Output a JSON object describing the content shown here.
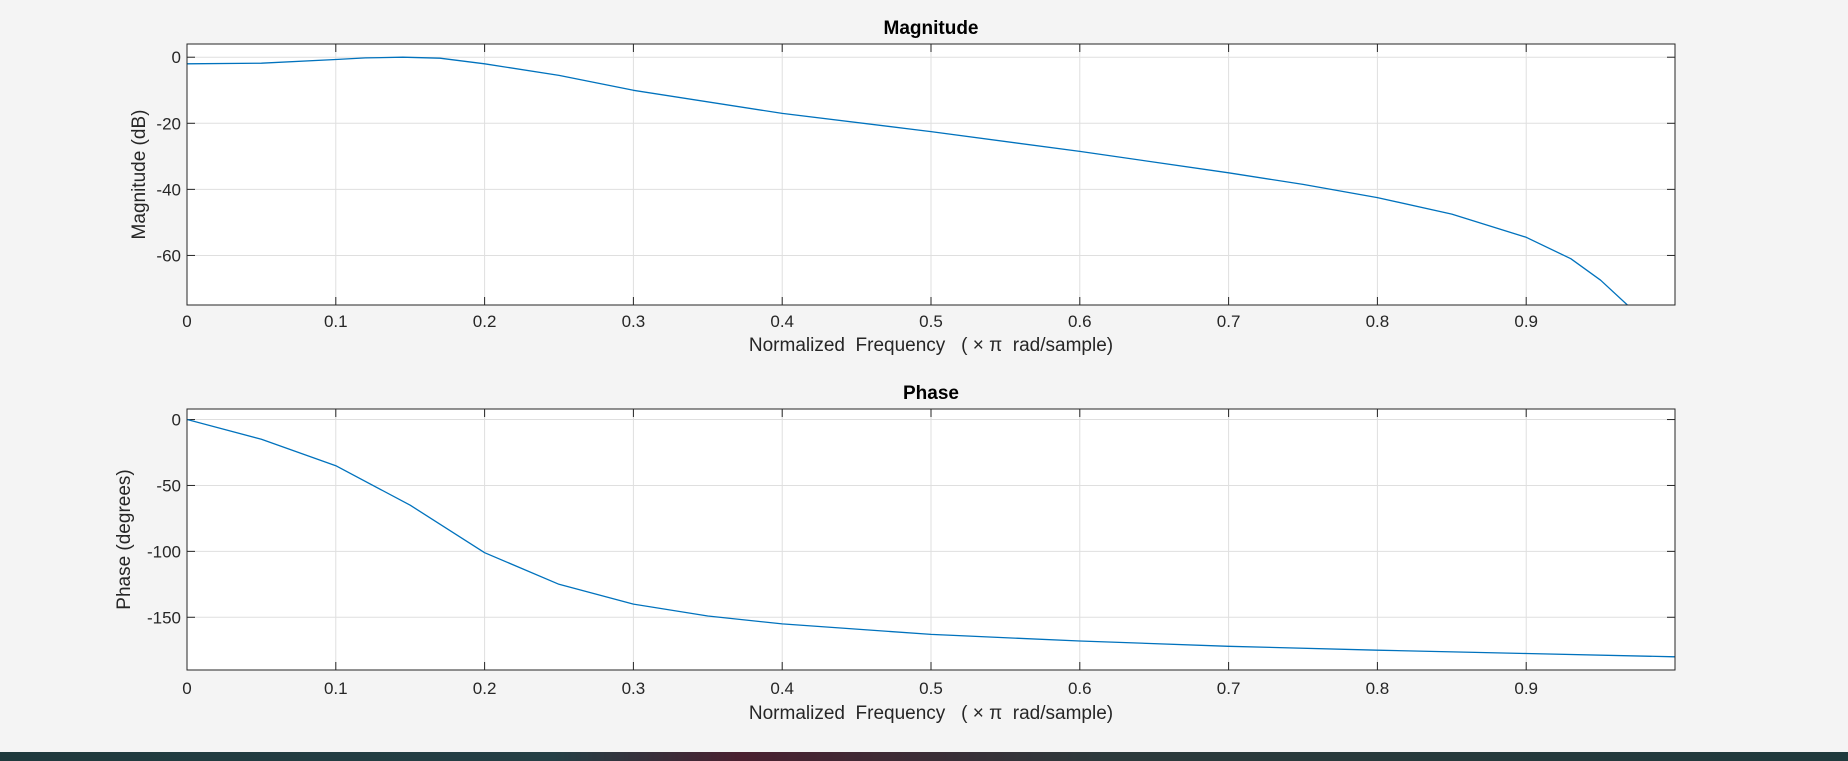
{
  "chart_data": [
    {
      "type": "line",
      "title": "Magnitude",
      "xlabel": "Normalized  Frequency   ( × π  rad/sample)",
      "ylabel": "Magnitude (dB)",
      "xlim": [
        0,
        1
      ],
      "ylim": [
        -75,
        4
      ],
      "xticks": [
        0,
        0.1,
        0.2,
        0.3,
        0.4,
        0.5,
        0.6,
        0.7,
        0.8,
        0.9
      ],
      "xtick_labels": [
        "0",
        "0.1",
        "0.2",
        "0.3",
        "0.4",
        "0.5",
        "0.6",
        "0.7",
        "0.8",
        "0.9"
      ],
      "yticks": [
        0,
        -20,
        -40,
        -60
      ],
      "ytick_labels": [
        "0",
        "-20",
        "-40",
        "-60"
      ],
      "grid": true,
      "color": "#0072bd",
      "x": [
        0,
        0.05,
        0.1,
        0.12,
        0.145,
        0.17,
        0.2,
        0.25,
        0.3,
        0.4,
        0.5,
        0.6,
        0.7,
        0.75,
        0.8,
        0.85,
        0.9,
        0.93,
        0.95,
        0.968
      ],
      "y": [
        -2,
        -1.8,
        -0.7,
        -0.2,
        0,
        -0.3,
        -2,
        -5.5,
        -10,
        -17,
        -22.5,
        -28.5,
        -35,
        -38.5,
        -42.5,
        -47.5,
        -54.5,
        -61,
        -67.5,
        -75
      ]
    },
    {
      "type": "line",
      "title": "Phase",
      "xlabel": "Normalized  Frequency   ( × π  rad/sample)",
      "ylabel": "Phase (degrees)",
      "xlim": [
        0,
        1
      ],
      "ylim": [
        -190,
        8
      ],
      "xticks": [
        0,
        0.1,
        0.2,
        0.3,
        0.4,
        0.5,
        0.6,
        0.7,
        0.8,
        0.9
      ],
      "xtick_labels": [
        "0",
        "0.1",
        "0.2",
        "0.3",
        "0.4",
        "0.5",
        "0.6",
        "0.7",
        "0.8",
        "0.9"
      ],
      "yticks": [
        0,
        -50,
        -100,
        -150
      ],
      "ytick_labels": [
        "0",
        "-50",
        "-100",
        "-150"
      ],
      "grid": true,
      "color": "#0072bd",
      "x": [
        0,
        0.05,
        0.1,
        0.15,
        0.2,
        0.25,
        0.3,
        0.35,
        0.4,
        0.5,
        0.6,
        0.7,
        0.8,
        0.9,
        1.0
      ],
      "y": [
        0,
        -15,
        -35,
        -65,
        -101,
        -125,
        -140,
        -149,
        -155,
        -163,
        -168,
        -172,
        -175,
        -177.5,
        -180
      ]
    }
  ]
}
